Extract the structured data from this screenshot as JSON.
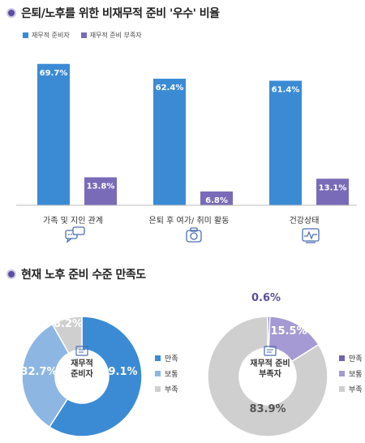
{
  "section1": {
    "title": "은퇴/노후를 위한 비재무적 준비 '우수' 비율"
  },
  "chart_data": [
    {
      "type": "bar",
      "title": "은퇴/노후를 위한 비재무적 준비 '우수' 비율",
      "categories": [
        "가족 및 지인 관계",
        "은퇴 후 여가/ 취미 활동",
        "건강상태"
      ],
      "series": [
        {
          "name": "재무적 준비자",
          "values": [
            69.7,
            62.4,
            61.4
          ],
          "color": "#3b8bd4"
        },
        {
          "name": "재무적 준비 부족자",
          "values": [
            13.8,
            6.8,
            13.1
          ],
          "color": "#7a6bb8"
        }
      ],
      "value_labels": [
        [
          "69.7%",
          "62.4%",
          "61.4%"
        ],
        [
          "13.8%",
          "6.8%",
          "13.1%"
        ]
      ],
      "ylim": [
        0,
        80
      ],
      "grid": false,
      "legend": "top-left"
    },
    {
      "type": "pie",
      "title": "현재 노후 준비 수준 만족도",
      "center_label": [
        "재무적",
        "준비자"
      ],
      "slices": [
        {
          "name": "만족",
          "value": 59.1,
          "label": "59.1%",
          "color": "#3b8bd4"
        },
        {
          "name": "보통",
          "value": 32.7,
          "label": "32.7%",
          "color": "#8db6e3"
        },
        {
          "name": "부족",
          "value": 8.2,
          "label": "8.2%",
          "color": "#cfcfcf"
        }
      ],
      "legend": "right"
    },
    {
      "type": "pie",
      "center_label": [
        "재무적 준비",
        "부족자"
      ],
      "slices": [
        {
          "name": "만족",
          "value": 0.6,
          "label": "0.6%",
          "color": "#6f63b4"
        },
        {
          "name": "보통",
          "value": 15.5,
          "label": "15.5%",
          "color": "#a59ad3"
        },
        {
          "name": "부족",
          "value": 83.9,
          "label": "83.9%",
          "color": "#cfcfcf"
        }
      ],
      "legend": "right"
    }
  ],
  "section2": {
    "title": "현재 노후 준비 수준 만족도"
  },
  "icons": [
    "chat-bubbles-icon",
    "camera-icon",
    "health-monitor-icon",
    "document-icon"
  ]
}
